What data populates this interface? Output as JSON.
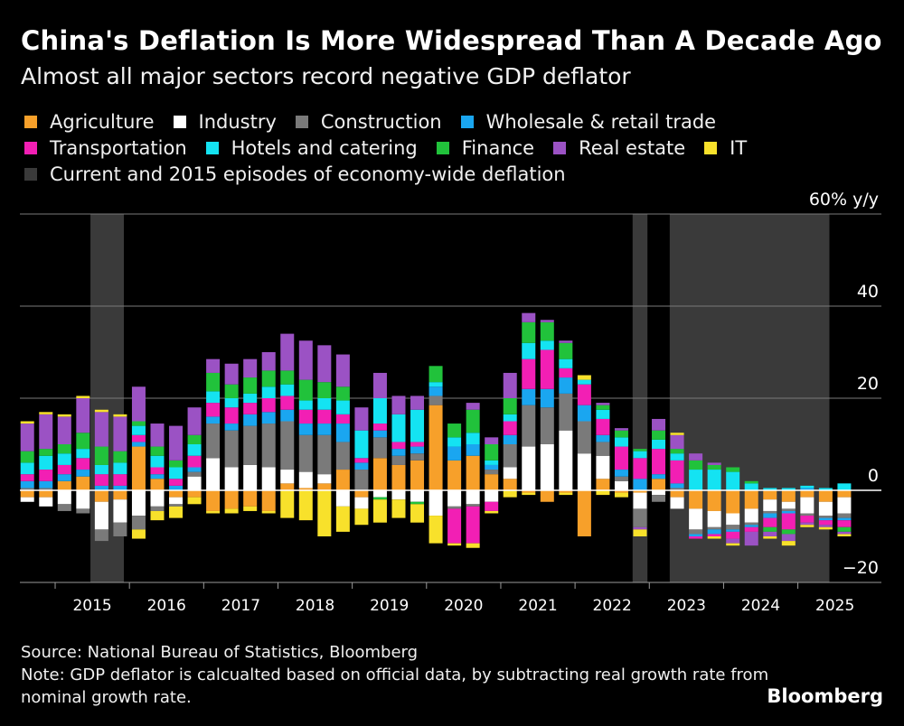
{
  "title": "China's Deflation Is More Widespread Than A Decade Ago",
  "subtitle": "Almost all major sectors record negative GDP deflator",
  "legend": [
    {
      "name": "Agriculture",
      "color": "#f7a02a"
    },
    {
      "name": "Industry",
      "color": "#ffffff"
    },
    {
      "name": "Construction",
      "color": "#7a7a7a"
    },
    {
      "name": "Wholesale & retail trade",
      "color": "#1aa6f0"
    },
    {
      "name": "Transportation",
      "color": "#f21fb4"
    },
    {
      "name": "Hotels and catering",
      "color": "#14e3f2"
    },
    {
      "name": "Finance",
      "color": "#21c23b"
    },
    {
      "name": "Real estate",
      "color": "#9b52c4"
    },
    {
      "name": "IT",
      "color": "#f8e12b"
    },
    {
      "name": "Current and 2015 episodes of economy-wide deflation",
      "color": "#3a3a3a"
    }
  ],
  "source": "Source: National Bureau of Statistics, Bloomberg",
  "note": "Note: GDP deflator is calcualted based on official data, by subtracting real growth rate from nominal growth rate.",
  "logo": "Bloomberg",
  "chart_data": {
    "type": "bar",
    "stacked": true,
    "title": "China's Deflation Is More Widespread Than A Decade Ago",
    "unit_label": "60% y/y",
    "ylim": [
      -20,
      60
    ],
    "yticks": [
      -20,
      0,
      20,
      40
    ],
    "xlim": [
      2014.4,
      2026.0
    ],
    "x_tick_labels": [
      "2015",
      "2016",
      "2017",
      "2018",
      "2019",
      "2020",
      "2021",
      "2022",
      "2023",
      "2024",
      "2025"
    ],
    "deflation_episodes": [
      [
        2015.35,
        2015.8
      ],
      [
        2022.65,
        2022.85
      ],
      [
        2023.15,
        2025.3
      ]
    ],
    "series_names": [
      "Agriculture",
      "Industry",
      "Construction",
      "Wholesale & retail trade",
      "Transportation",
      "Hotels and catering",
      "Finance",
      "Real estate",
      "IT"
    ],
    "quarters": [
      {
        "x": 2014.5,
        "values": [
          -1.5,
          -1,
          0.5,
          1.5,
          1.5,
          2.5,
          2.5,
          6,
          0.5
        ]
      },
      {
        "x": 2014.75,
        "values": [
          -1.5,
          -2,
          0.5,
          1.5,
          2.5,
          3,
          1.5,
          7.5,
          0.5
        ]
      },
      {
        "x": 2015.0,
        "values": [
          2,
          -3,
          -1.5,
          1.5,
          2,
          2.5,
          2,
          6,
          0.5
        ]
      },
      {
        "x": 2015.25,
        "values": [
          3,
          -4,
          -1,
          1.5,
          2.5,
          2,
          3.5,
          7.5,
          0.5
        ]
      },
      {
        "x": 2015.5,
        "values": [
          -2.5,
          -6,
          -2.5,
          1,
          2.5,
          2,
          4,
          7.5,
          0.5
        ]
      },
      {
        "x": 2015.75,
        "values": [
          -2,
          -5,
          -3,
          1,
          2.5,
          2.5,
          2.5,
          7.5,
          0.5
        ]
      },
      {
        "x": 2016.0,
        "values": [
          9.5,
          -5.5,
          -3,
          1,
          1.5,
          2,
          1,
          7.5,
          -2
        ]
      },
      {
        "x": 2016.25,
        "values": [
          2.5,
          -3.5,
          -1,
          1,
          1.5,
          2.5,
          2,
          5,
          -2
        ]
      },
      {
        "x": 2016.5,
        "values": [
          -1.5,
          -1.5,
          -0.5,
          1,
          1.5,
          2.5,
          1.5,
          7.5,
          -2.5
        ]
      },
      {
        "x": 2016.75,
        "values": [
          -1.5,
          3,
          1,
          1,
          2.5,
          2.5,
          2,
          6,
          -1.5
        ]
      },
      {
        "x": 2017.0,
        "values": [
          -4.5,
          7,
          7.5,
          1.5,
          3,
          2.5,
          4,
          3,
          -0.5
        ]
      },
      {
        "x": 2017.25,
        "values": [
          -4,
          5,
          8,
          1.5,
          3.5,
          2,
          3,
          4.5,
          -1
        ]
      },
      {
        "x": 2017.5,
        "values": [
          -3.5,
          5.5,
          8.5,
          2.5,
          2.5,
          2,
          3.5,
          4,
          -1
        ]
      },
      {
        "x": 2017.75,
        "values": [
          -4.5,
          5,
          9.5,
          2.5,
          3,
          2.5,
          3.5,
          4,
          -0.5
        ]
      },
      {
        "x": 2018.0,
        "values": [
          1.5,
          3,
          10.5,
          2.5,
          3,
          2.5,
          3,
          8,
          -6
        ]
      },
      {
        "x": 2018.25,
        "values": [
          0.5,
          3.5,
          8,
          2.5,
          3,
          2,
          4.5,
          8.5,
          -6.5
        ]
      },
      {
        "x": 2018.5,
        "values": [
          1.5,
          2,
          8.5,
          2.5,
          3,
          2.5,
          3.5,
          8,
          -10
        ]
      },
      {
        "x": 2018.75,
        "values": [
          4.5,
          -3.5,
          6,
          4,
          2,
          3,
          3,
          7,
          -5.5
        ]
      },
      {
        "x": 2019.0,
        "values": [
          -1.5,
          -2.5,
          4.5,
          1.5,
          1,
          6,
          0,
          5,
          -3.5
        ]
      },
      {
        "x": 2019.25,
        "values": [
          7,
          -1.5,
          4.5,
          1.5,
          1.5,
          5.5,
          -0.5,
          5.5,
          -5
        ]
      },
      {
        "x": 2019.5,
        "values": [
          5.5,
          -2,
          2,
          1.5,
          1.5,
          6,
          0,
          4,
          -4
        ]
      },
      {
        "x": 2019.75,
        "values": [
          6.5,
          -2.5,
          1.5,
          1.5,
          1,
          7,
          -0.5,
          3,
          -4
        ]
      },
      {
        "x": 2020.0,
        "values": [
          18.5,
          -5.5,
          2,
          2,
          0,
          1,
          3.5,
          0,
          -6
        ]
      },
      {
        "x": 2020.25,
        "values": [
          6.5,
          -3.5,
          -0.5,
          3,
          -7.5,
          2,
          3,
          0,
          -0.5
        ]
      },
      {
        "x": 2020.5,
        "values": [
          7.5,
          -3,
          -0.5,
          2.5,
          -8,
          2.5,
          5,
          1.5,
          -1
        ]
      },
      {
        "x": 2020.75,
        "values": [
          3.5,
          -2.5,
          1,
          1,
          -2,
          1,
          3.5,
          1.5,
          -0.5
        ]
      },
      {
        "x": 2021.0,
        "values": [
          2.5,
          2.5,
          5,
          2,
          3,
          1.5,
          3.5,
          5.5,
          -1.5
        ]
      },
      {
        "x": 2021.25,
        "values": [
          -0.5,
          9.5,
          9,
          3.5,
          6.5,
          3.5,
          4.5,
          2,
          -0.5
        ]
      },
      {
        "x": 2021.5,
        "values": [
          -2.5,
          10,
          8,
          4,
          8.5,
          2,
          4,
          0.5,
          0
        ]
      },
      {
        "x": 2021.75,
        "values": [
          -0.5,
          13,
          8,
          3.5,
          2,
          2,
          3.5,
          0.5,
          -0.5
        ]
      },
      {
        "x": 2022.0,
        "values": [
          -10,
          8,
          7,
          3.5,
          4.5,
          1,
          0,
          0,
          1
        ]
      },
      {
        "x": 2022.25,
        "values": [
          2.5,
          5,
          3,
          1.5,
          3.5,
          2,
          1,
          0.5,
          -1
        ]
      },
      {
        "x": 2022.5,
        "values": [
          -0.5,
          2,
          1,
          1.5,
          5,
          2,
          1.5,
          0.5,
          -1
        ]
      },
      {
        "x": 2022.75,
        "values": [
          -0.5,
          -3.5,
          -4,
          2.5,
          4.5,
          1.5,
          0.5,
          -0.5,
          -1.5
        ]
      },
      {
        "x": 2023.0,
        "values": [
          2.5,
          -1,
          -1.5,
          1,
          5.5,
          2,
          2,
          2.5,
          0
        ]
      },
      {
        "x": 2023.25,
        "values": [
          -1.5,
          -2.5,
          0.5,
          1,
          5,
          1.5,
          1,
          3,
          0.5
        ]
      },
      {
        "x": 2023.5,
        "values": [
          -4,
          -4.5,
          -1,
          -0.5,
          -0.5,
          4.5,
          2,
          1.5,
          0
        ]
      },
      {
        "x": 2023.75,
        "values": [
          -4.5,
          -3.5,
          -0.5,
          -1,
          -0.5,
          4.5,
          1,
          0.5,
          -0.5
        ]
      },
      {
        "x": 2024.0,
        "values": [
          -5,
          -2.5,
          -1,
          -0.5,
          -1.5,
          4,
          1,
          -1,
          -0.5
        ]
      },
      {
        "x": 2024.25,
        "values": [
          -4,
          -3,
          -0.5,
          -0.5,
          -1,
          1.5,
          0.5,
          -3,
          0
        ]
      },
      {
        "x": 2024.5,
        "values": [
          -2,
          -2.5,
          -0.5,
          -1,
          -2,
          0.5,
          -1,
          -1,
          -0.5
        ]
      },
      {
        "x": 2024.75,
        "values": [
          -2.5,
          -1.5,
          -0.5,
          -0.5,
          -3.5,
          0.5,
          -1,
          -1.5,
          -1
        ]
      },
      {
        "x": 2025.0,
        "values": [
          -1.5,
          -3.5,
          -0.5,
          0.5,
          -1.5,
          0.5,
          0,
          -0.5,
          -0.5
        ]
      },
      {
        "x": 2025.25,
        "values": [
          -2.5,
          -3,
          -0.5,
          -0.5,
          -1,
          0.5,
          0,
          -0.5,
          -0.5
        ]
      },
      {
        "x": 2025.5,
        "values": [
          -1.5,
          -3.5,
          -1,
          -0.5,
          -1.5,
          1.5,
          -1,
          -0.5,
          -0.5
        ]
      }
    ]
  }
}
